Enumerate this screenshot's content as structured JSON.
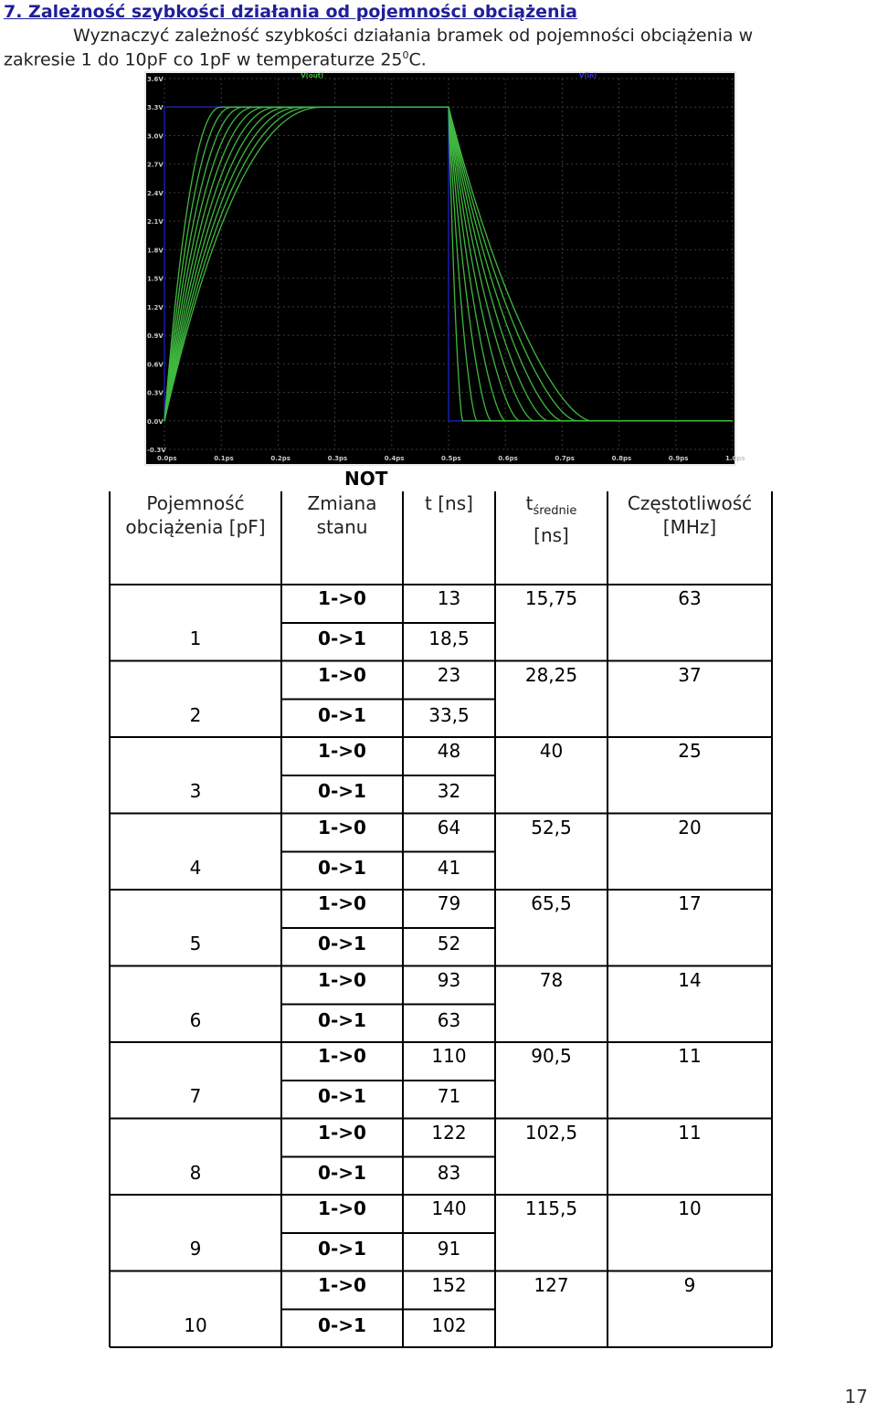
{
  "heading": "7. Zależność szybkości działania od pojemności obciążenia",
  "intro": {
    "line1": "Wyznaczyć zależność szybkości działania bramek od pojemności obciążenia w",
    "line2_before": "zakresie 1 do 10pF co 1pF w temperaturze 25",
    "line2_sup": "0",
    "line2_after": "C."
  },
  "chart_data": {
    "type": "line",
    "legend": [
      "V(out)",
      "V(in)"
    ],
    "yticks": [
      "3.6V",
      "3.3V",
      "3.0V",
      "2.7V",
      "2.4V",
      "2.1V",
      "1.8V",
      "1.5V",
      "1.2V",
      "0.9V",
      "0.6V",
      "0.3V",
      "0.0V",
      "-0.3V"
    ],
    "xticks": [
      "0.0ps",
      "0.1ps",
      "0.2ps",
      "0.3ps",
      "0.4ps",
      "0.5ps",
      "0.6ps",
      "0.7ps",
      "0.8ps",
      "0.9ps",
      "1.0ps"
    ],
    "ylim": [
      -0.3,
      3.6
    ],
    "xlim": [
      0.0,
      1.0
    ],
    "input_series": {
      "name": "V(in)",
      "x": [
        0.0,
        0.0,
        0.5,
        0.5,
        1.0
      ],
      "y": [
        0.0,
        3.3,
        3.3,
        0.0,
        0.0
      ]
    },
    "series_rise_ends": [
      0.1,
      0.12,
      0.14,
      0.16,
      0.18,
      0.2,
      0.22,
      0.24,
      0.26,
      0.28
    ],
    "series_fall_ends": [
      0.525,
      0.55,
      0.575,
      0.6,
      0.625,
      0.65,
      0.675,
      0.7,
      0.725,
      0.75
    ],
    "high_level": 3.3,
    "colors": {
      "background": "#000000",
      "grid": "#3a3a3a",
      "trace": "#3fb83f",
      "input": "#1a1aa0",
      "tick_text": "#c8c8c8"
    }
  },
  "table": {
    "title": "NOT",
    "headers": {
      "capacitance": [
        "Pojemność",
        "obciążenia [pF]"
      ],
      "change": [
        "Zmiana",
        "stanu"
      ],
      "t": "t [ns]",
      "tavg_main": "t",
      "tavg_sub": "średnie",
      "tavg_unit": "[ns]",
      "freq": [
        "Częstotliwość",
        "[MHz]"
      ]
    },
    "rows": [
      {
        "c": "1",
        "fall": "1->0",
        "t_fall": "13",
        "rise": "0->1",
        "t_rise": "18,5",
        "avg": "15,75",
        "freq": "63"
      },
      {
        "c": "2",
        "fall": "1->0",
        "t_fall": "23",
        "rise": "0->1",
        "t_rise": "33,5",
        "avg": "28,25",
        "freq": "37"
      },
      {
        "c": "3",
        "fall": "1->0",
        "t_fall": "48",
        "rise": "0->1",
        "t_rise": "32",
        "avg": "40",
        "freq": "25"
      },
      {
        "c": "4",
        "fall": "1->0",
        "t_fall": "64",
        "rise": "0->1",
        "t_rise": "41",
        "avg": "52,5",
        "freq": "20"
      },
      {
        "c": "5",
        "fall": "1->0",
        "t_fall": "79",
        "rise": "0->1",
        "t_rise": "52",
        "avg": "65,5",
        "freq": "17"
      },
      {
        "c": "6",
        "fall": "1->0",
        "t_fall": "93",
        "rise": "0->1",
        "t_rise": "63",
        "avg": "78",
        "freq": "14"
      },
      {
        "c": "7",
        "fall": "1->0",
        "t_fall": "110",
        "rise": "0->1",
        "t_rise": "71",
        "avg": "90,5",
        "freq": "11"
      },
      {
        "c": "8",
        "fall": "1->0",
        "t_fall": "122",
        "rise": "0->1",
        "t_rise": "83",
        "avg": "102,5",
        "freq": "11"
      },
      {
        "c": "9",
        "fall": "1->0",
        "t_fall": "140",
        "rise": "0->1",
        "t_rise": "91",
        "avg": "115,5",
        "freq": "10"
      },
      {
        "c": "10",
        "fall": "1->0",
        "t_fall": "152",
        "rise": "0->1",
        "t_rise": "102",
        "avg": "127",
        "freq": "9"
      }
    ]
  },
  "page_number": "17"
}
